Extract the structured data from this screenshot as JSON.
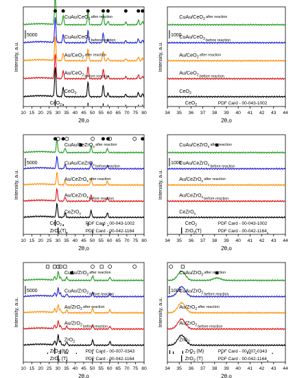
{
  "chart_data": [
    {
      "type": "line",
      "xlabel": "2θ,o",
      "ylabel": "Intensity, a.u.",
      "xlim": [
        10,
        80
      ],
      "x_ticks": [
        "10",
        "15",
        "20",
        "25",
        "30",
        "35",
        "40",
        "45",
        "50",
        "55",
        "60",
        "65",
        "70",
        "75",
        "80"
      ],
      "scale_bar": "5000",
      "colors": {
        "green": "#1e9a1e",
        "blue": "#1f1fdd",
        "orange": "#ff8c00",
        "red": "#dd1111",
        "black": "#000000"
      },
      "series": [
        {
          "name": "CuAu/CeO2 after reaction",
          "color": "green",
          "peaks": [
            [
              28.5,
              7
            ],
            [
              33.1,
              2.2
            ],
            [
              47.5,
              3.2
            ],
            [
              56.3,
              2.6
            ],
            [
              59.1,
              0.9
            ],
            [
              69.4,
              0.6
            ],
            [
              76.7,
              1.1
            ],
            [
              79.1,
              0.8
            ]
          ]
        },
        {
          "name": "CuAu/CeO2 before reaction",
          "color": "blue",
          "peaks": [
            [
              28.5,
              6
            ],
            [
              33.1,
              1.9
            ],
            [
              47.5,
              2.9
            ],
            [
              56.3,
              2.3
            ],
            [
              59.1,
              0.7
            ],
            [
              69.4,
              0.5
            ],
            [
              76.7,
              0.9
            ],
            [
              79.1,
              0.6
            ]
          ]
        },
        {
          "name": "Au/CeO2 after reaction",
          "color": "orange",
          "peaks": [
            [
              28.5,
              6
            ],
            [
              33.1,
              1.9
            ],
            [
              47.5,
              2.9
            ],
            [
              56.3,
              2.3
            ],
            [
              59.1,
              0.7
            ],
            [
              69.4,
              0.5
            ],
            [
              76.7,
              0.9
            ],
            [
              79.1,
              0.6
            ]
          ]
        },
        {
          "name": "Au/CeO2 before reaction",
          "color": "red",
          "peaks": [
            [
              28.5,
              6
            ],
            [
              33.1,
              1.9
            ],
            [
              47.5,
              2.9
            ],
            [
              56.3,
              2.3
            ],
            [
              59.1,
              0.7
            ],
            [
              69.4,
              0.5
            ],
            [
              76.7,
              0.9
            ],
            [
              79.1,
              0.6
            ]
          ]
        },
        {
          "name": "CeO2",
          "color": "black",
          "peaks": [
            [
              28.5,
              7
            ],
            [
              33.1,
              2.2
            ],
            [
              47.5,
              3.5
            ],
            [
              56.3,
              2.8
            ],
            [
              59.1,
              0.8
            ],
            [
              69.4,
              0.6
            ],
            [
              76.7,
              1.0
            ],
            [
              79.1,
              0.7
            ]
          ]
        }
      ],
      "pdf_cards": [
        {
          "name": "CeO2",
          "card": "",
          "lines": [
            [
              28.5,
              1
            ],
            [
              33.1,
              0.3
            ],
            [
              47.5,
              0.5
            ],
            [
              56.3,
              0.4
            ],
            [
              59.1,
              0.1
            ],
            [
              69.4,
              0.1
            ],
            [
              76.7,
              0.15
            ],
            [
              79.1,
              0.1
            ]
          ]
        }
      ],
      "markers": [
        {
          "symbol": "filled-circle",
          "x": [
            28.5,
            33.1,
            47.5,
            56.3,
            59.1,
            69.4,
            76.7,
            79.1
          ]
        }
      ]
    },
    {
      "type": "line",
      "xlabel": "2θ,o",
      "ylabel": "Intensity, a.u.",
      "xlim": [
        34,
        44
      ],
      "x_ticks": [
        "34",
        "35",
        "36",
        "37",
        "38",
        "39",
        "40",
        "41",
        "42",
        "43",
        "44"
      ],
      "scale_bar": "1000",
      "series": [
        {
          "name": "CuAu/CeO2 after reaction",
          "color": "green",
          "peaks": []
        },
        {
          "name": "CuAu/CeO2 before reaction",
          "color": "blue",
          "peaks": []
        },
        {
          "name": "Au/CeO2 after reaction",
          "color": "orange",
          "peaks": []
        },
        {
          "name": "Au/CeO2 before reaction",
          "color": "red",
          "peaks": []
        },
        {
          "name": "CeO2",
          "color": "black",
          "peaks": []
        }
      ],
      "pdf_cards": [
        {
          "name": "CeO2",
          "card": "PDF Card - 00-043-1002",
          "lines": []
        }
      ]
    },
    {
      "type": "line",
      "xlabel": "2θ,o",
      "ylabel": "Intensity, a.u.",
      "xlim": [
        10,
        80
      ],
      "x_ticks": [
        "10",
        "15",
        "20",
        "25",
        "30",
        "35",
        "40",
        "45",
        "50",
        "55",
        "60",
        "65",
        "70",
        "75",
        "80"
      ],
      "scale_bar": "5000",
      "series": [
        {
          "name": "CuAu/CeZrOx after reaction",
          "color": "green",
          "peaks": [
            [
              29.5,
              3.2
            ],
            [
              34.2,
              1.1
            ],
            [
              49.3,
              1.6
            ],
            [
              58.7,
              1.0
            ]
          ]
        },
        {
          "name": "CuAu/CeZrOx before reaction",
          "color": "blue",
          "peaks": [
            [
              29.5,
              3.0
            ],
            [
              34.2,
              1.0
            ],
            [
              49.3,
              1.5
            ],
            [
              58.7,
              0.9
            ]
          ]
        },
        {
          "name": "Au/CeZrOx after reaction",
          "color": "orange",
          "peaks": [
            [
              29.5,
              3.0
            ],
            [
              34.2,
              1.0
            ],
            [
              49.3,
              1.5
            ],
            [
              58.7,
              0.9
            ]
          ]
        },
        {
          "name": "Au/CeZrOx before reaction",
          "color": "red",
          "peaks": [
            [
              29.5,
              3.0
            ],
            [
              34.2,
              1.0
            ],
            [
              49.3,
              1.5
            ],
            [
              58.7,
              0.9
            ]
          ]
        },
        {
          "name": "CeZrOx",
          "color": "black",
          "peaks": [
            [
              29.5,
              3.4
            ],
            [
              34.2,
              1.1
            ],
            [
              49.3,
              1.7
            ],
            [
              58.7,
              1.1
            ]
          ]
        }
      ],
      "pdf_cards": [
        {
          "name": "CeO2",
          "card": "PDF Card - 00-043-1002",
          "lines": [
            [
              28.5,
              1
            ],
            [
              33.1,
              0.3
            ],
            [
              47.5,
              0.5
            ],
            [
              56.3,
              0.4
            ],
            [
              59.1,
              0.1
            ]
          ]
        },
        {
          "name": "ZrO2(T)",
          "card": "PDF Card - 00-042-1164",
          "lines": [
            [
              30.2,
              1
            ],
            [
              35.2,
              0.25
            ],
            [
              50.2,
              0.5
            ],
            [
              60.2,
              0.35
            ]
          ]
        }
      ],
      "markers": [
        {
          "symbol": "filled-circle",
          "x": [
            28.5,
            33.1,
            56.3,
            59.1,
            79.1
          ]
        },
        {
          "symbol": "open-circle",
          "x": [
            30.2,
            35.2,
            50.2,
            60.2,
            74.5
          ]
        },
        {
          "symbol": "filled-square",
          "x": [
            43.3
          ]
        }
      ]
    },
    {
      "type": "line",
      "xlabel": "2θ,o",
      "ylabel": "Intensity, a.u.",
      "xlim": [
        34,
        44
      ],
      "x_ticks": [
        "34",
        "35",
        "36",
        "37",
        "38",
        "39",
        "40",
        "41",
        "42",
        "43",
        "44"
      ],
      "scale_bar": "1000",
      "series": [
        {
          "name": "CuAu/CeZrOx after reaction",
          "color": "green",
          "peaks": []
        },
        {
          "name": "CuAu/CeZrOx before reaction",
          "color": "blue",
          "peaks": []
        },
        {
          "name": "Au/CeZrOx after reaction",
          "color": "orange",
          "peaks": []
        },
        {
          "name": "Au/CeZrOx before reaction",
          "color": "red",
          "peaks": []
        },
        {
          "name": "CeZrOx",
          "color": "black",
          "peaks": []
        }
      ],
      "pdf_cards": [
        {
          "name": "CeO2",
          "card": "PDF Card - 00-043-1002",
          "lines": []
        },
        {
          "name": "ZrO2(T)",
          "card": "PDF Card - 00-042-1164",
          "lines": [
            [
              35.2,
              1
            ],
            [
              42.5,
              0.12
            ]
          ]
        }
      ],
      "markers": [
        {
          "symbol": "filled-square",
          "x": [
            38.2
          ]
        }
      ]
    },
    {
      "type": "line",
      "xlabel": "2θ,o",
      "ylabel": "Intensity, a.u.",
      "xlim": [
        10,
        80
      ],
      "x_ticks": [
        "10",
        "15",
        "20",
        "25",
        "30",
        "35",
        "40",
        "45",
        "50",
        "55",
        "60",
        "65",
        "70",
        "75",
        "80"
      ],
      "scale_bar": "5000",
      "series": [
        {
          "name": "CuAu/ZrO2 after reaction",
          "color": "green",
          "peaks": [
            [
              28.2,
              0.9
            ],
            [
              30.2,
              2.2
            ],
            [
              31.5,
              0.8
            ],
            [
              35.2,
              0.8
            ],
            [
              50.2,
              1.2
            ],
            [
              60.2,
              0.8
            ]
          ]
        },
        {
          "name": "CuAu/ZrO2 before reaction",
          "color": "blue",
          "peaks": [
            [
              28.2,
              0.9
            ],
            [
              30.2,
              2.0
            ],
            [
              31.5,
              0.8
            ],
            [
              35.2,
              0.7
            ],
            [
              50.2,
              1.1
            ],
            [
              60.2,
              0.7
            ]
          ]
        },
        {
          "name": "Au/ZrO2 after reaction",
          "color": "orange",
          "peaks": [
            [
              28.2,
              0.9
            ],
            [
              30.2,
              2.0
            ],
            [
              31.5,
              0.8
            ],
            [
              35.2,
              0.7
            ],
            [
              50.2,
              1.1
            ],
            [
              60.2,
              0.7
            ]
          ]
        },
        {
          "name": "Au/ZrO2 before reaction",
          "color": "red",
          "peaks": [
            [
              28.2,
              0.9
            ],
            [
              30.2,
              2.0
            ],
            [
              31.5,
              0.8
            ],
            [
              35.2,
              0.7
            ],
            [
              50.2,
              1.1
            ],
            [
              60.2,
              0.7
            ]
          ]
        },
        {
          "name": "ZrO2",
          "color": "black",
          "peaks": [
            [
              28.2,
              1.0
            ],
            [
              30.2,
              2.4
            ],
            [
              31.5,
              0.9
            ],
            [
              35.2,
              0.8
            ],
            [
              50.2,
              1.3
            ],
            [
              60.2,
              0.9
            ]
          ]
        }
      ],
      "pdf_cards": [
        {
          "name": "ZrO2 (M)",
          "card": "PDF Card - 00-007-0343",
          "lines": [
            [
              24.1,
              0.2
            ],
            [
              28.2,
              1
            ],
            [
              31.5,
              0.7
            ],
            [
              34.2,
              0.3
            ],
            [
              35.3,
              0.25
            ],
            [
              40.8,
              0.12
            ],
            [
              50.1,
              0.2
            ],
            [
              55.4,
              0.15
            ]
          ]
        },
        {
          "name": "ZrO2 (T)",
          "card": "PDF Card - 00-042-1164",
          "lines": [
            [
              30.2,
              1
            ],
            [
              35.2,
              0.25
            ],
            [
              50.2,
              0.5
            ],
            [
              60.2,
              0.35
            ]
          ]
        }
      ],
      "markers": [
        {
          "symbol": "open-circle",
          "x": [
            30.2,
            50.2,
            60.2,
            74.5
          ]
        },
        {
          "symbol": "open-square",
          "x": [
            24.1,
            28.2,
            31.5,
            34.2,
            55.4
          ]
        },
        {
          "symbol": "filled-square",
          "x": [
            38.2
          ]
        }
      ]
    },
    {
      "type": "line",
      "xlabel": "2θ,o",
      "ylabel": "Intensity, a.u.",
      "xlim": [
        34,
        44
      ],
      "x_ticks": [
        "34",
        "35",
        "36",
        "37",
        "38",
        "39",
        "40",
        "41",
        "42",
        "43",
        "44"
      ],
      "scale_bar": "1000",
      "series": [
        {
          "name": "CuAu/ZrO2 after reaction",
          "color": "green",
          "peaks": [
            [
              35.2,
              2.2
            ],
            [
              38.2,
              0.6
            ]
          ]
        },
        {
          "name": "CuAu/ZrO2 before reaction",
          "color": "blue",
          "peaks": [
            [
              35.2,
              2.4
            ]
          ]
        },
        {
          "name": "Au/ZrO2 after reaction",
          "color": "orange",
          "peaks": [
            [
              35.2,
              2.4
            ]
          ]
        },
        {
          "name": "Au/ZrO2 before reaction",
          "color": "red",
          "peaks": [
            [
              35.2,
              2.4
            ]
          ]
        },
        {
          "name": "ZrO2",
          "color": "black",
          "peaks": [
            [
              35.2,
              2.4
            ]
          ]
        }
      ],
      "pdf_cards": [
        {
          "name": "ZrO2 (M)",
          "card": "PDF Card - 00-007-0343",
          "lines": [
            [
              34.2,
              0.6
            ],
            [
              34.5,
              0.4
            ],
            [
              35.3,
              0.5
            ],
            [
              36.0,
              0.2
            ],
            [
              38.6,
              0.1
            ],
            [
              40.8,
              0.3
            ],
            [
              41.0,
              0.2
            ],
            [
              41.5,
              0.15
            ],
            [
              42.9,
              0.1
            ]
          ]
        },
        {
          "name": "ZrO2 (T)",
          "card": "PDF Card - 00-042-1164",
          "lines": [
            [
              35.2,
              1
            ],
            [
              42.5,
              0.12
            ]
          ]
        }
      ],
      "markers": [
        {
          "symbol": "open-circle",
          "x": [
            34.3
          ]
        },
        {
          "symbol": "open-square",
          "x": [
            35.3
          ]
        },
        {
          "symbol": "filled-square",
          "x": [
            38.2
          ]
        }
      ]
    }
  ]
}
